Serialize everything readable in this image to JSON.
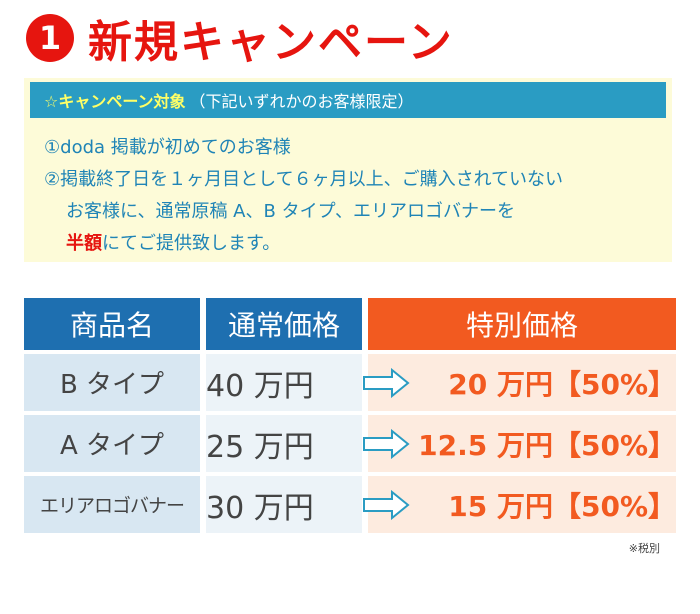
{
  "title": {
    "number": "1",
    "text": "新規キャンペーン"
  },
  "campaign": {
    "header_strong": "☆キャンペーン対象",
    "header_note": "（下記いずれかのお客様限定）",
    "items": [
      "①doda 掲載が初めてのお客様",
      "②掲載終了日を１ヶ月目として６ヶ月以上、ご購入されていない"
    ],
    "line3": "お客様に、通常原稿 A、B タイプ、エリアロゴバナーを",
    "line4_strong": "半額",
    "line4_rest": "にてご提供致します。"
  },
  "table": {
    "headers": [
      "商品名",
      "通常価格",
      "特別価格"
    ],
    "rows": [
      {
        "name": "B タイプ",
        "regular": "40 万円",
        "special": "20 万円【50%】"
      },
      {
        "name": "A タイプ",
        "regular": "25 万円",
        "special": "12.5 万円【50%】"
      },
      {
        "name": "エリアロゴバナー",
        "regular": "30 万円",
        "special": "15 万円【50%】"
      }
    ]
  },
  "footnote": "※税別",
  "colors": {
    "accent_red": "#e6150f",
    "header_blue": "#2a9cc3",
    "table_blue": "#1e6fb0",
    "table_orange": "#f25a20"
  }
}
